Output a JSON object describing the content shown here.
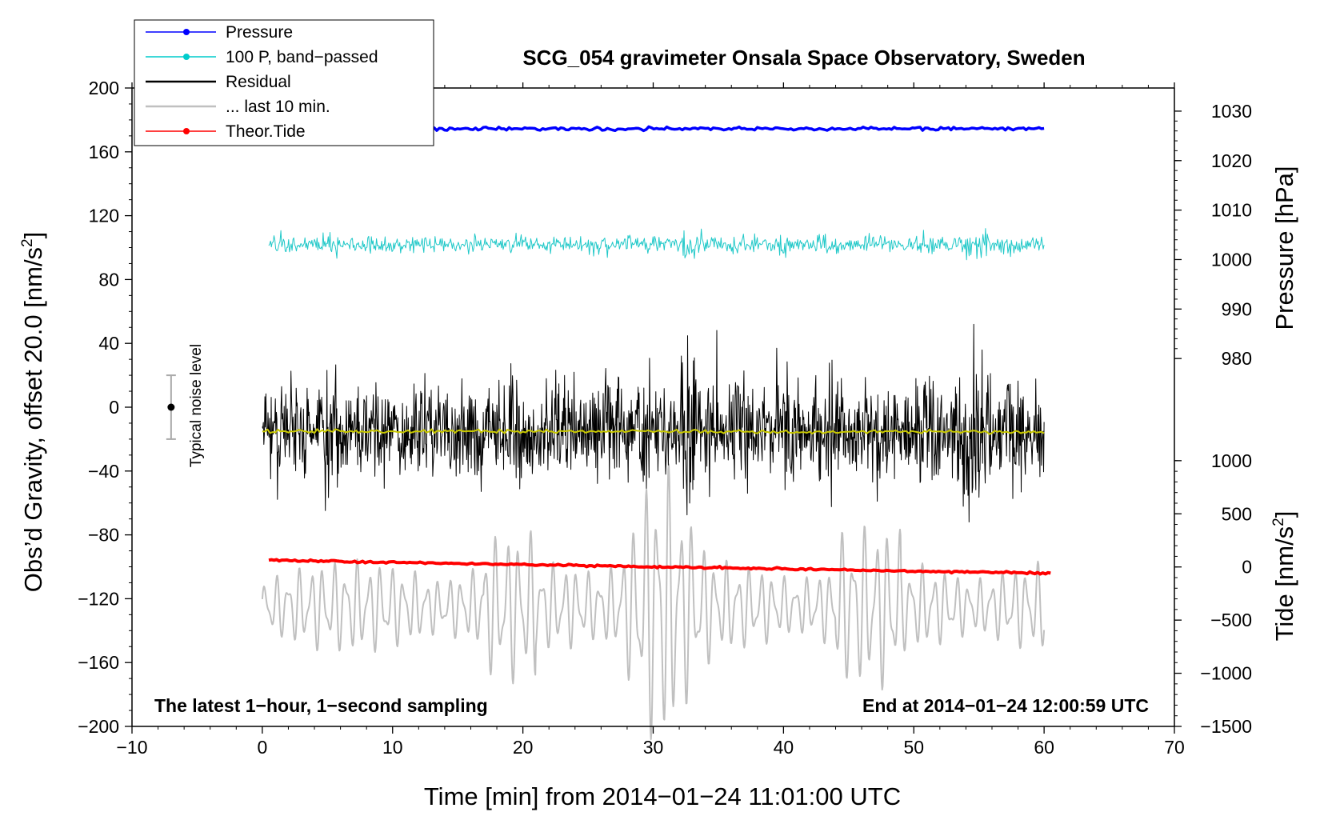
{
  "chart_data": {
    "type": "line",
    "title": "SCG_054 gravimeter Onsala Space Observatory, Sweden",
    "xlabel": "Time [min] from 2014−01−24 11:01:00 UTC",
    "ylabel_left": "Obs’d Gravity, offset 20.0 [nm/s",
    "ylabel_left_sup": "2",
    "ylabel_left_end": "]",
    "ylabel_right_pressure": "Pressure [hPa]",
    "ylabel_right_tide": "Tide [nm/s",
    "ylabel_right_tide_sup": "2",
    "ylabel_right_tide_end": "]",
    "xlim": [
      -10,
      70
    ],
    "ylim": [
      -200,
      200
    ],
    "x_ticks": [
      -10,
      0,
      10,
      20,
      30,
      40,
      50,
      60,
      70
    ],
    "x_tick_labels": [
      "−10",
      "0",
      "10",
      "20",
      "30",
      "40",
      "50",
      "60",
      "70"
    ],
    "y_ticks": [
      -200,
      -160,
      -120,
      -80,
      -40,
      0,
      40,
      80,
      120,
      160,
      200
    ],
    "y_tick_labels": [
      "−200",
      "−160",
      "−120",
      "−80",
      "−40",
      "0",
      "40",
      "80",
      "120",
      "160",
      "200"
    ],
    "pressure_axis": {
      "ticks": [
        980,
        990,
        1000,
        1010,
        1020,
        1030
      ],
      "tick_labels": [
        "980",
        "990",
        "1000",
        "1010",
        "1020",
        "1030"
      ],
      "gravity_equiv": {
        "value_a": 980,
        "grav_a": 30.5,
        "value_b": 1030,
        "grav_b": 185.5
      }
    },
    "tide_axis": {
      "ticks": [
        -1500,
        -1000,
        -500,
        0,
        500,
        1000
      ],
      "tick_labels": [
        "−1500",
        "−1000",
        "−500",
        "0",
        "500",
        "1000"
      ],
      "gravity_equiv": {
        "value_a": -1500,
        "grav_a": -200,
        "value_b": 1000,
        "grav_b": -33.5
      }
    },
    "legend": [
      {
        "label": "Pressure",
        "color": "#0000ff",
        "marker": true
      },
      {
        "label": "100 P, band−passed",
        "color": "#00cccc",
        "marker": true
      },
      {
        "label": "Residual",
        "color": "#000000",
        "marker": false
      },
      {
        "label": "... last 10 min.",
        "color": "#c0c0c0",
        "marker": false
      },
      {
        "label": "Theor.Tide",
        "color": "#ff0000",
        "marker": true
      }
    ],
    "series": [
      {
        "name": "Pressure",
        "color": "#0000ff",
        "kind": "flat",
        "x_start": 0.5,
        "x_end": 60,
        "level_start": 174.3,
        "level_end": 174.6,
        "noise": 0.5
      },
      {
        "name": "100 P, band-passed",
        "color": "#20c8c8",
        "kind": "noise",
        "x_start": 0.5,
        "x_end": 60,
        "level": 102,
        "amplitude": 5
      },
      {
        "name": "Residual",
        "color": "#000000",
        "kind": "noise",
        "x_start": 0,
        "x_end": 60,
        "level": -15,
        "amplitude": 28
      },
      {
        "name": "Residual smoothed",
        "color": "#c8c800",
        "kind": "flat",
        "x_start": 0,
        "x_end": 60,
        "level_start": -15,
        "level_end": -15.5,
        "noise": 0.6
      },
      {
        "name": "... last 10 min.",
        "color": "#c0c0c0",
        "kind": "oscillation",
        "x_start": 0,
        "x_end": 60,
        "level": -125,
        "amplitude": 25
      },
      {
        "name": "Theor.Tide",
        "color": "#ff0000",
        "kind": "flat",
        "x_start": 0.5,
        "x_end": 60.5,
        "level_start": -96,
        "level_end": -104,
        "noise": 0.3
      }
    ],
    "noise_indicator": {
      "label": "Typical noise level",
      "x": -7,
      "center": 0,
      "half_range": 20,
      "color": "#aaaaaa"
    },
    "annotations": {
      "left_note": "The latest 1−hour, 1−second sampling",
      "right_note": "End at 2014−01−24 12:00:59 UTC"
    }
  }
}
